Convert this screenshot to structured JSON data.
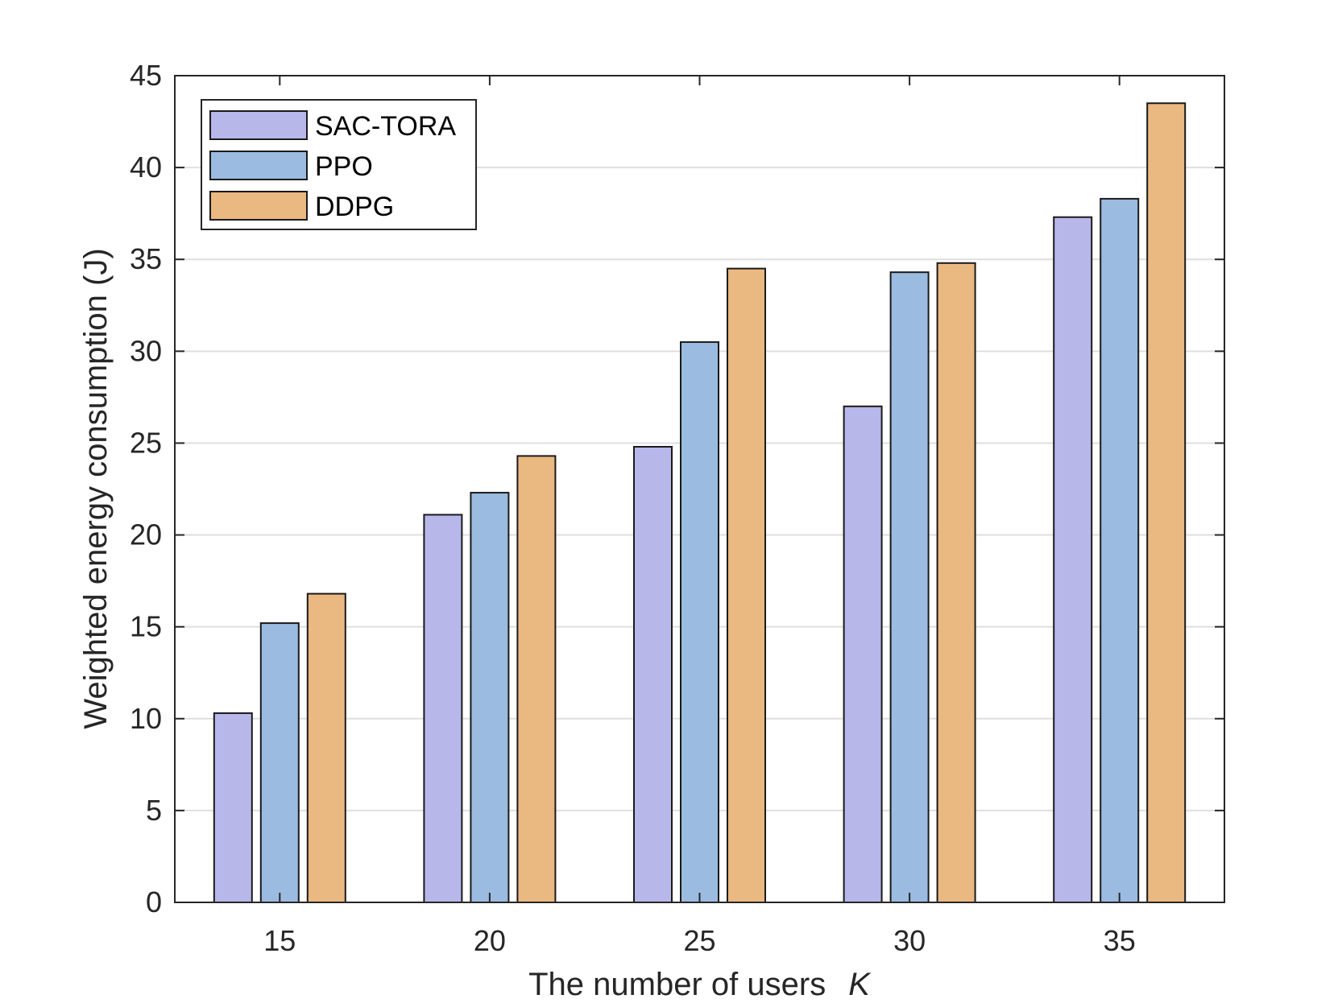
{
  "chart_data": {
    "type": "bar",
    "title": "",
    "xlabel": "The number of users",
    "xlabel_var": "K",
    "ylabel": "Weighted energy consumption (J)",
    "categories": [
      "15",
      "20",
      "25",
      "30",
      "35"
    ],
    "series": [
      {
        "name": "SAC-TORA",
        "color": "#b7b7ea",
        "values": [
          10.3,
          21.1,
          24.8,
          27.0,
          37.3
        ]
      },
      {
        "name": "PPO",
        "color": "#9bbbe1",
        "values": [
          15.2,
          22.3,
          30.5,
          34.3,
          38.3
        ]
      },
      {
        "name": "DDPG",
        "color": "#eab881",
        "values": [
          16.8,
          24.3,
          34.5,
          34.8,
          43.5
        ]
      }
    ],
    "ylim": [
      0,
      45
    ],
    "yticks": [
      "0",
      "5",
      "10",
      "15",
      "20",
      "25",
      "30",
      "35",
      "40",
      "45"
    ],
    "grid": "horizontal",
    "legend_position": "top-left",
    "bar_edge_color": "#1a1a1a",
    "axis_color": "#262626",
    "grid_color": "#dfdfdf"
  }
}
